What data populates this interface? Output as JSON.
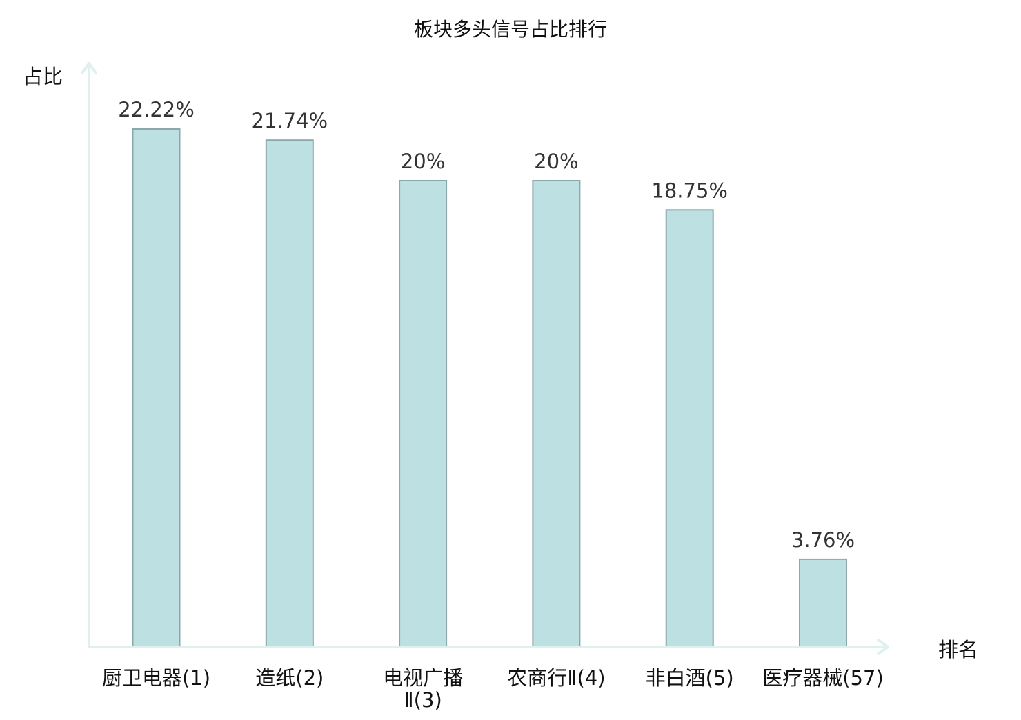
{
  "chart_data": {
    "type": "bar",
    "title": "板块多头信号占比排行",
    "xlabel": "排名",
    "ylabel": "占比",
    "ylim": [
      0,
      25
    ],
    "grid": false,
    "legend": "none",
    "categories": [
      "厨卫电器(1)",
      "造纸(2)",
      "电视广播Ⅱ(3)",
      "农商行Ⅱ(4)",
      "非白酒(5)",
      "医疗器械(57)"
    ],
    "values": [
      22.22,
      21.74,
      20,
      20,
      18.75,
      3.76
    ],
    "value_labels": [
      "22.22%",
      "21.74%",
      "20%",
      "20%",
      "18.75%",
      "3.76%"
    ],
    "highlight_index": 5,
    "colors": {
      "bar_fill": "#bde0e3",
      "bar_stroke": "#8ca8ab",
      "axis": "#dff1ee",
      "text": "#111111",
      "value_text": "#333333",
      "highlight_text": "#e60000"
    }
  }
}
